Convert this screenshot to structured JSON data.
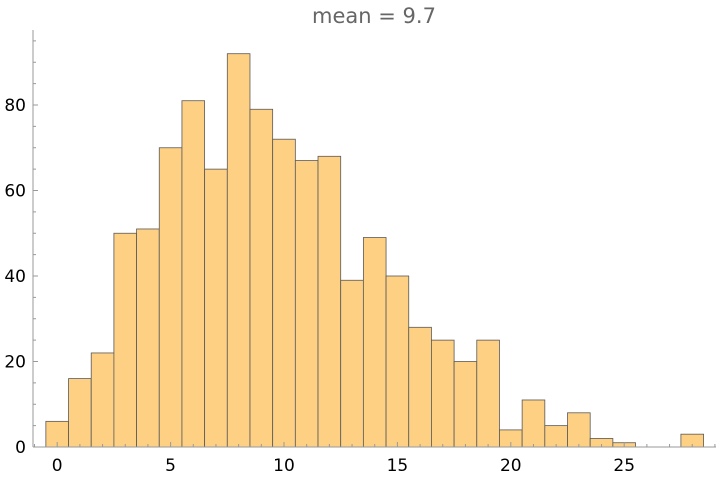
{
  "chart_data": {
    "type": "bar",
    "title": "mean = 9.7",
    "xlabel": "",
    "ylabel": "",
    "bin_width": 1,
    "bin_start": -0.5,
    "values": [
      6,
      16,
      22,
      50,
      51,
      70,
      81,
      65,
      92,
      79,
      72,
      67,
      68,
      39,
      49,
      40,
      28,
      25,
      20,
      25,
      4,
      11,
      5,
      8,
      2,
      1,
      0,
      0,
      3
    ],
    "xlim": [
      -1,
      29
    ],
    "ylim": [
      0,
      96
    ],
    "x_ticks": [
      0,
      5,
      10,
      15,
      20,
      25
    ],
    "y_ticks": [
      0,
      20,
      40,
      60,
      80
    ],
    "bar_color": "#fdd083",
    "edge_color": "#595959",
    "grid": false
  }
}
